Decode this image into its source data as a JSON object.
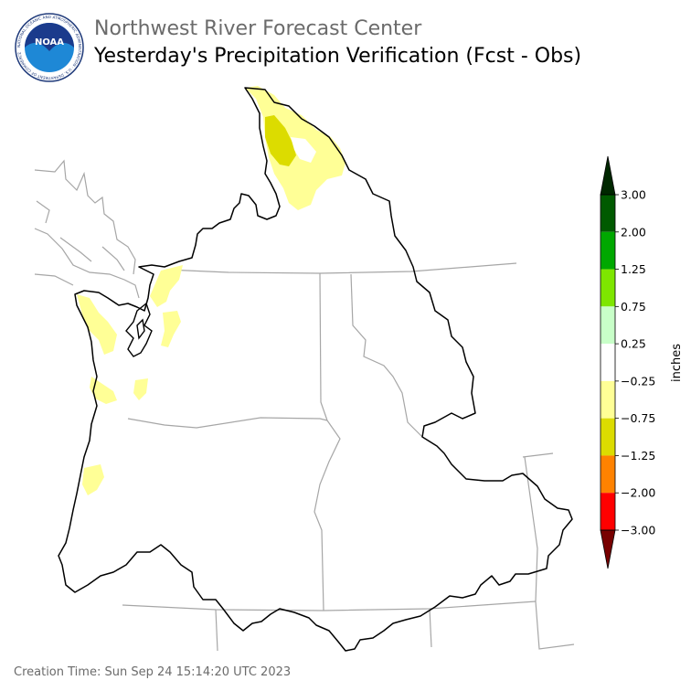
{
  "header": {
    "title_line1": "Northwest River Forecast Center",
    "title_line2": "Yesterday's Precipitation Verification (Fcst - Obs)"
  },
  "logo": {
    "icon": "noaa-logo-icon",
    "text": "NOAA",
    "ring_text": "NATIONAL OCEANIC AND ATMOSPHERIC ADMINISTRATION · U.S. DEPARTMENT OF COMMERCE"
  },
  "legend": {
    "unit_label": "inches",
    "tick_labels": [
      "3.00",
      "2.00",
      "1.25",
      "0.75",
      "0.25",
      "−0.25",
      "−0.75",
      "−1.25",
      "−2.00",
      "−3.00"
    ],
    "bins": [
      {
        "from": 2.0,
        "to": 3.0,
        "color": "#005a00"
      },
      {
        "from": 1.25,
        "to": 2.0,
        "color": "#00a800"
      },
      {
        "from": 0.75,
        "to": 1.25,
        "color": "#7ee600"
      },
      {
        "from": 0.25,
        "to": 0.75,
        "color": "#c8ffc8"
      },
      {
        "from": -0.25,
        "to": 0.25,
        "color": "#ffffff"
      },
      {
        "from": -0.75,
        "to": -0.25,
        "color": "#ffff96"
      },
      {
        "from": -1.25,
        "to": -0.75,
        "color": "#dcdc00"
      },
      {
        "from": -2.0,
        "to": -1.25,
        "color": "#ff8200"
      },
      {
        "from": -3.0,
        "to": -2.0,
        "color": "#ff0000"
      }
    ],
    "extend_above_color": "#002800",
    "extend_below_color": "#780000"
  },
  "map": {
    "basin_outline_color": "#000000",
    "state_border_color": "#a6a6a6"
  },
  "footer": {
    "creation_time": "Creation Time: Sun Sep 24 15:14:20 UTC 2023"
  }
}
